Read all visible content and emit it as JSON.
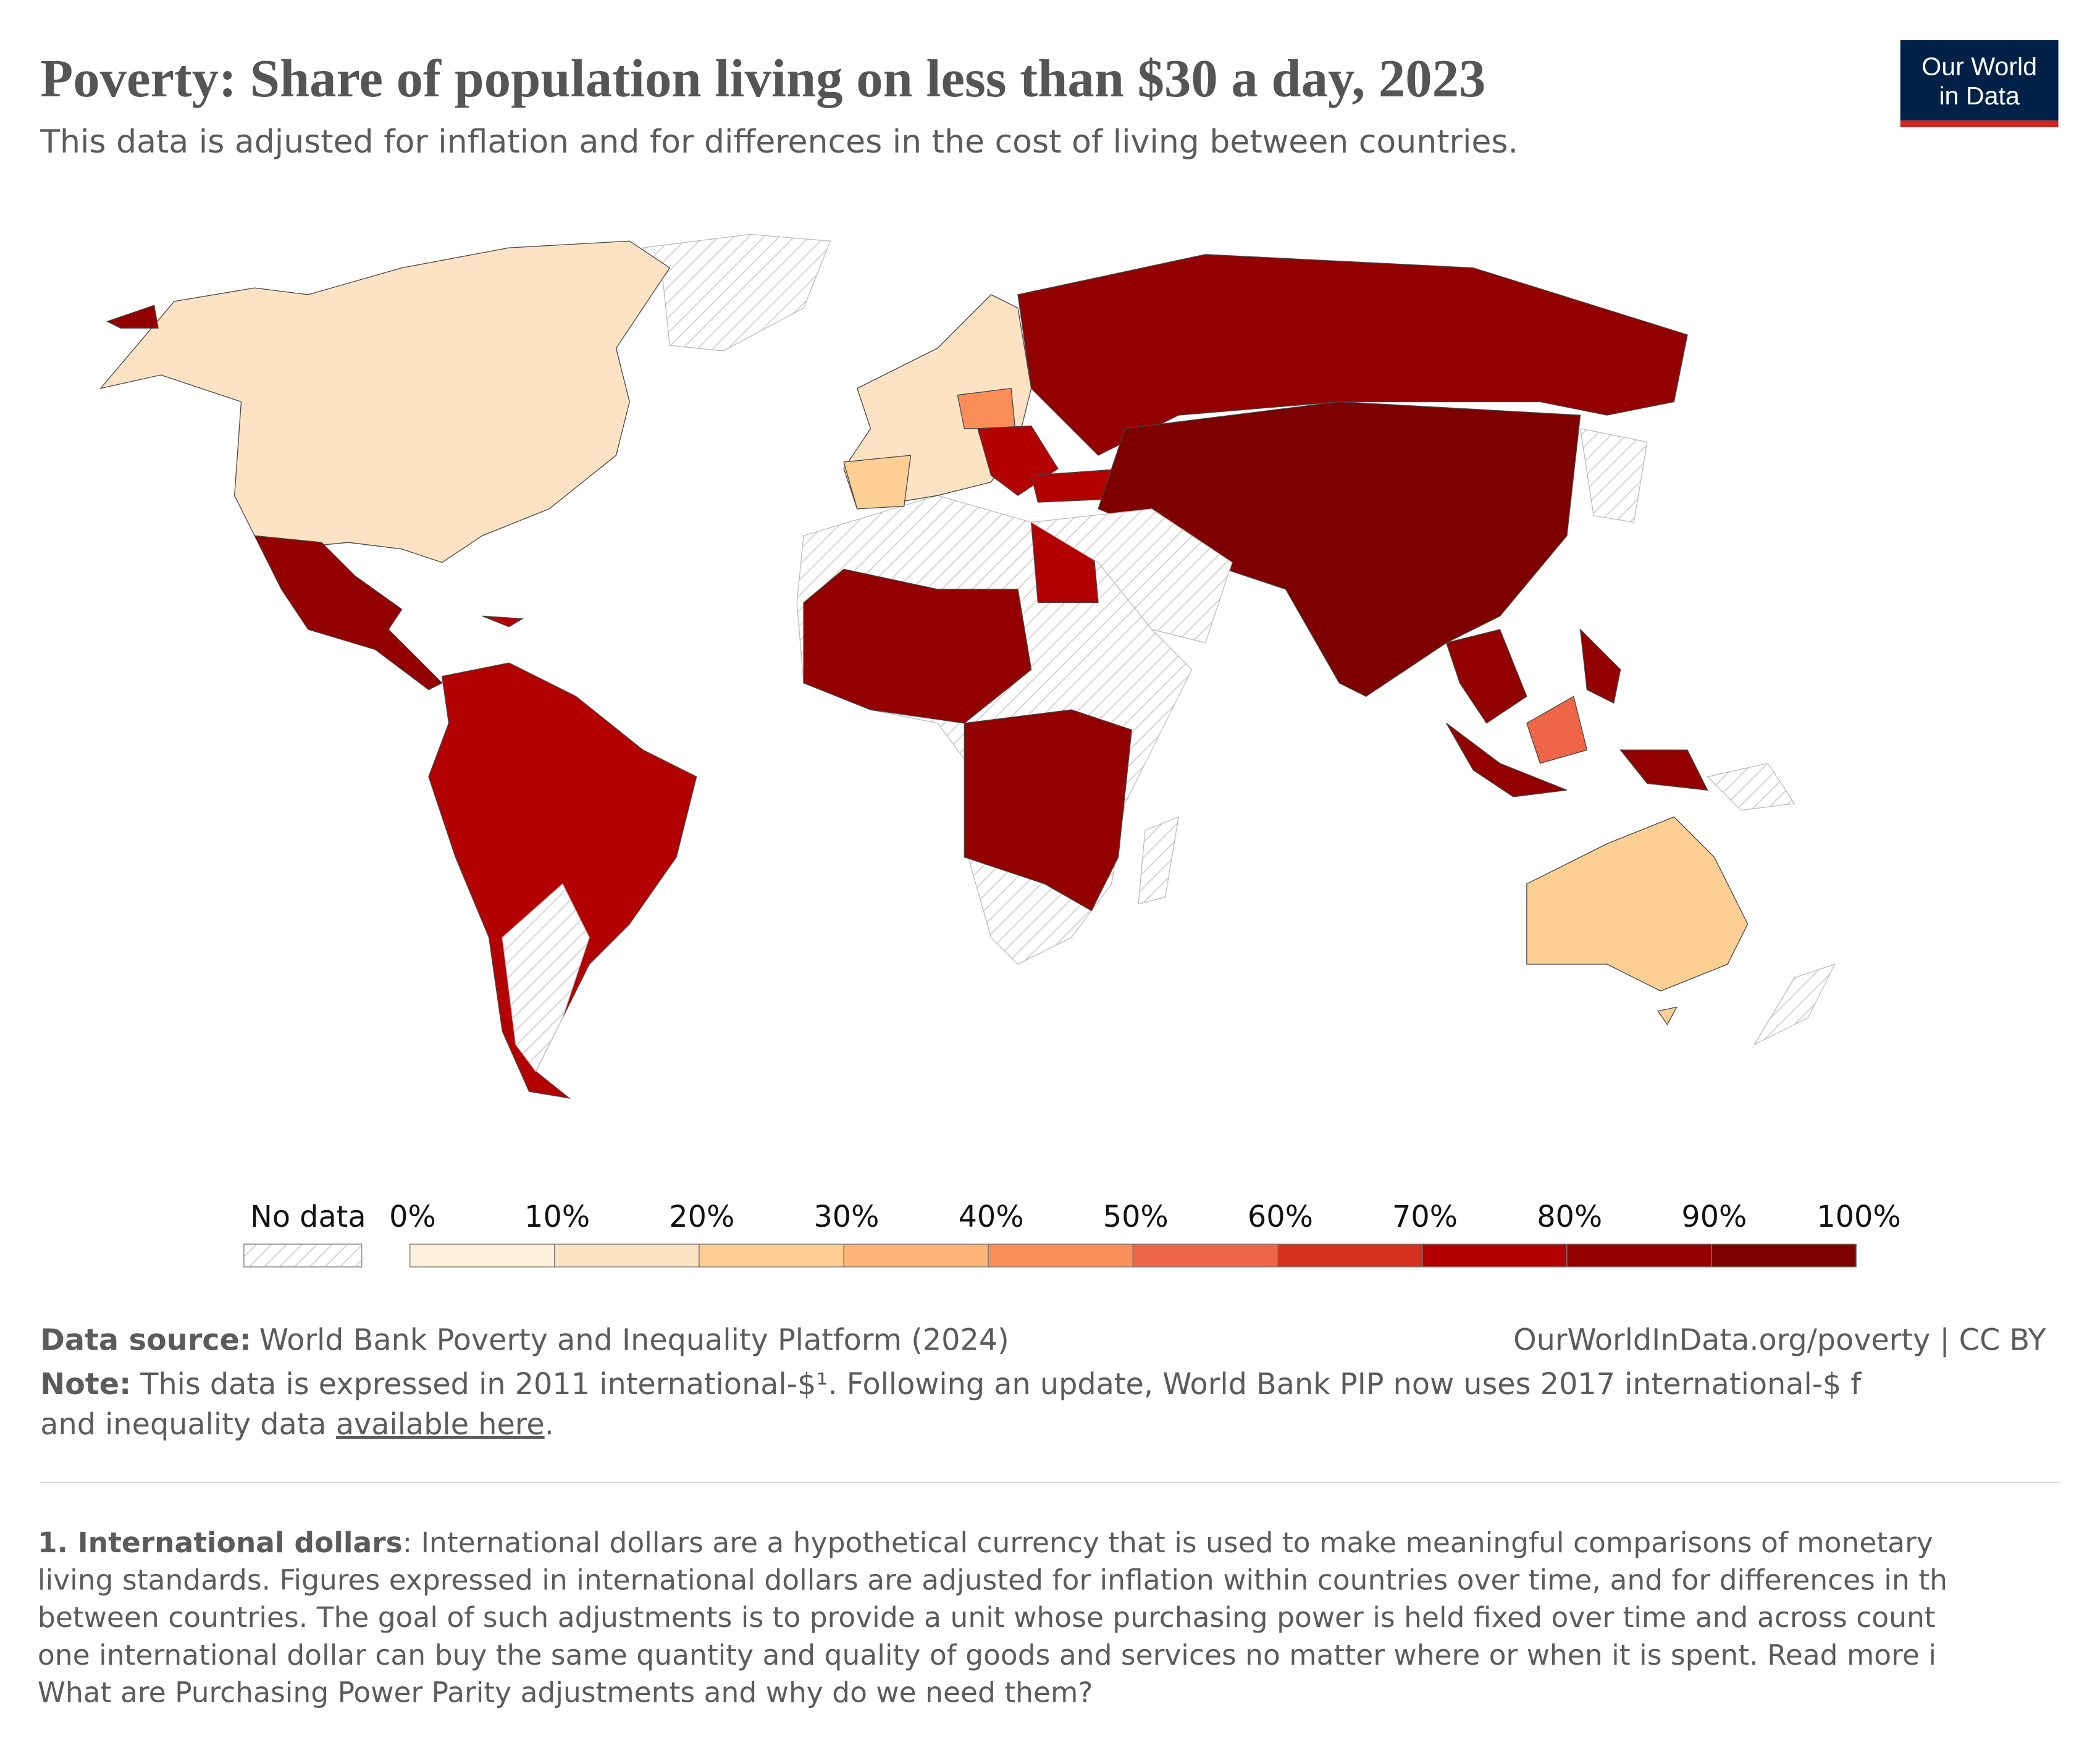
{
  "header": {
    "title": "Poverty: Share of population living on less than $30 a day, 2023",
    "subtitle": "This data is adjusted for inflation and for differences in the cost of living between countries.",
    "logo": [
      "Our World",
      "in Data"
    ]
  },
  "chart_data": {
    "type": "map",
    "legend": {
      "no_data": "No data",
      "xlim": [
        0,
        100
      ],
      "ticks": [
        {
          "value": 0,
          "label": "0%"
        },
        {
          "value": 10,
          "label": "10%"
        },
        {
          "value": 20,
          "label": "20%"
        },
        {
          "value": 30,
          "label": "30%"
        },
        {
          "value": 40,
          "label": "40%"
        },
        {
          "value": 50,
          "label": "50%"
        },
        {
          "value": 60,
          "label": "60%"
        },
        {
          "value": 70,
          "label": "70%"
        },
        {
          "value": 80,
          "label": "80%"
        },
        {
          "value": 90,
          "label": "90%"
        },
        {
          "value": 100,
          "label": "100%"
        }
      ],
      "colors": [
        "#fef0dc",
        "#fde2c3",
        "#fdcf95",
        "#fdb477",
        "#fb8d59",
        "#ef6548",
        "#d7301f",
        "#b30000",
        "#930000",
        "#7f0000"
      ]
    }
  },
  "footer": {
    "source_label": "Data source:",
    "source": "World Bank Poverty and Inequality Platform (2024)",
    "url": "OurWorldInData.org/poverty | CC BY",
    "note_label": "Note:",
    "note": " This data is expressed in 2011 international-$¹. Following an update, World Bank PIP now uses 2017 international-$ f",
    "note_2": "and inequality data ",
    "note_link": "available here",
    "note_end": ".",
    "footnote_label": "1. International dollars",
    "footnote": [
      ": International dollars are a hypothetical currency that is used to make meaningful comparisons of monetary",
      "living standards. Figures expressed in international dollars are adjusted for inflation within countries over time, and for differences in th",
      "between countries. The goal of such adjustments is to provide a unit whose purchasing power is held fixed over time and across count",
      "one international dollar can buy the same quantity and quality of goods and services no matter where or when it is spent. Read more i",
      "What are Purchasing Power Parity adjustments and why do we need them?"
    ]
  }
}
